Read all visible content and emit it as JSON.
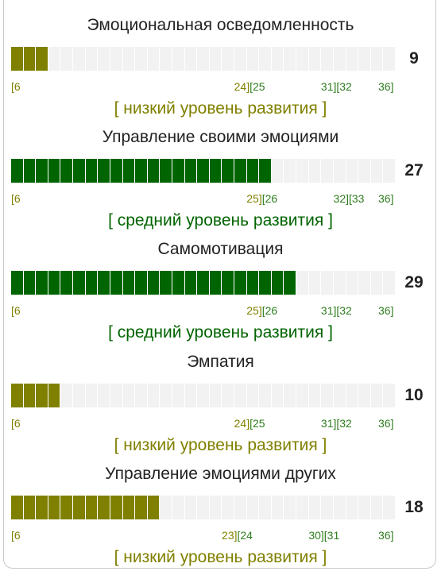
{
  "colors": {
    "low": "#808000",
    "medium": "#006400",
    "empty": "#f2f2f2",
    "tick_mid_high": "#2e7d1e"
  },
  "scale": {
    "min": 6,
    "max": 36,
    "total_cells": 31
  },
  "sections": [
    {
      "title": "Эмоциональная осведомленность",
      "score": "9",
      "score_value": 9,
      "level_key": "low",
      "level_text": "[ низкий уровень развития ]",
      "ticks": {
        "start": "[6",
        "b1": "24][25",
        "b2": "31][32",
        "end": "36]"
      },
      "tick_values": {
        "b1": 24.5,
        "b2": 31.5
      }
    },
    {
      "title": "Управление своими эмоциями",
      "score": "27",
      "score_value": 27,
      "level_key": "medium",
      "level_text": "[ средний уровень развития ]",
      "ticks": {
        "start": "[6",
        "b1": "25][26",
        "b2": "32][33",
        "end": "36]"
      },
      "tick_values": {
        "b1": 25.5,
        "b2": 32.5
      }
    },
    {
      "title": "Самомотивация",
      "score": "29",
      "score_value": 29,
      "level_key": "medium",
      "level_text": "[ средний уровень развития ]",
      "ticks": {
        "start": "[6",
        "b1": "25][26",
        "b2": "31][32",
        "end": "36]"
      },
      "tick_values": {
        "b1": 25.5,
        "b2": 31.5
      }
    },
    {
      "title": "Эмпатия",
      "score": "10",
      "score_value": 10,
      "level_key": "low",
      "level_text": "[ низкий уровень развития ]",
      "ticks": {
        "start": "[6",
        "b1": "24][25",
        "b2": "31][32",
        "end": "36]"
      },
      "tick_values": {
        "b1": 24.5,
        "b2": 31.5
      }
    },
    {
      "title": "Управление эмоциями других",
      "score": "18",
      "score_value": 18,
      "level_key": "low",
      "level_text": "[ низкий уровень развития ]",
      "ticks": {
        "start": "[6",
        "b1": "23][24",
        "b2": "30][31",
        "end": "36]"
      },
      "tick_values": {
        "b1": 23.5,
        "b2": 30.5
      }
    }
  ]
}
